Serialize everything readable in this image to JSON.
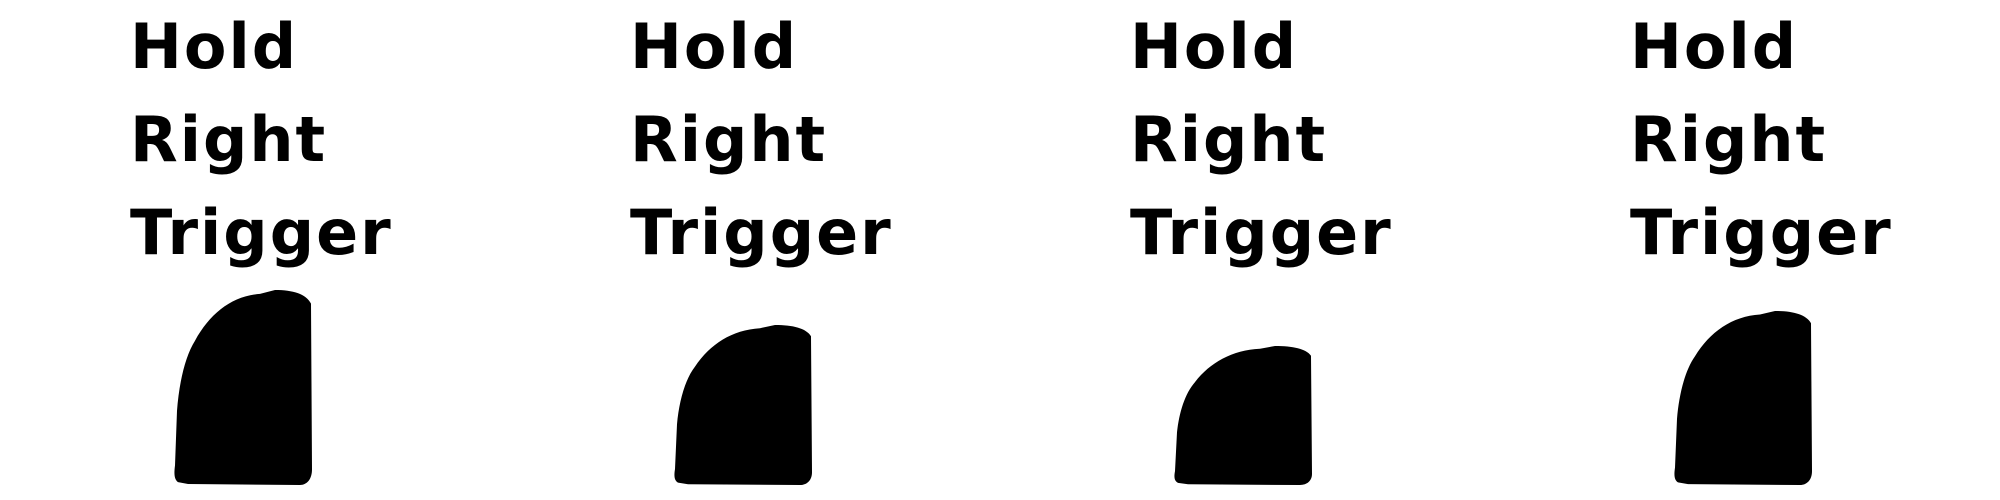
{
  "frames": [
    {
      "lines": [
        "Hold",
        "Right",
        "Trigger"
      ],
      "trigger_press_level": 0
    },
    {
      "lines": [
        "Hold",
        "Right",
        "Trigger"
      ],
      "trigger_press_level": 0.5
    },
    {
      "lines": [
        "Hold",
        "Right",
        "Trigger"
      ],
      "trigger_press_level": 0.8
    },
    {
      "lines": [
        "Hold",
        "Right",
        "Trigger"
      ],
      "trigger_press_level": 0.3
    }
  ],
  "colors": {
    "ink": "#000000",
    "background": "#ffffff"
  },
  "icons": {
    "trigger": "right-trigger-icon"
  }
}
